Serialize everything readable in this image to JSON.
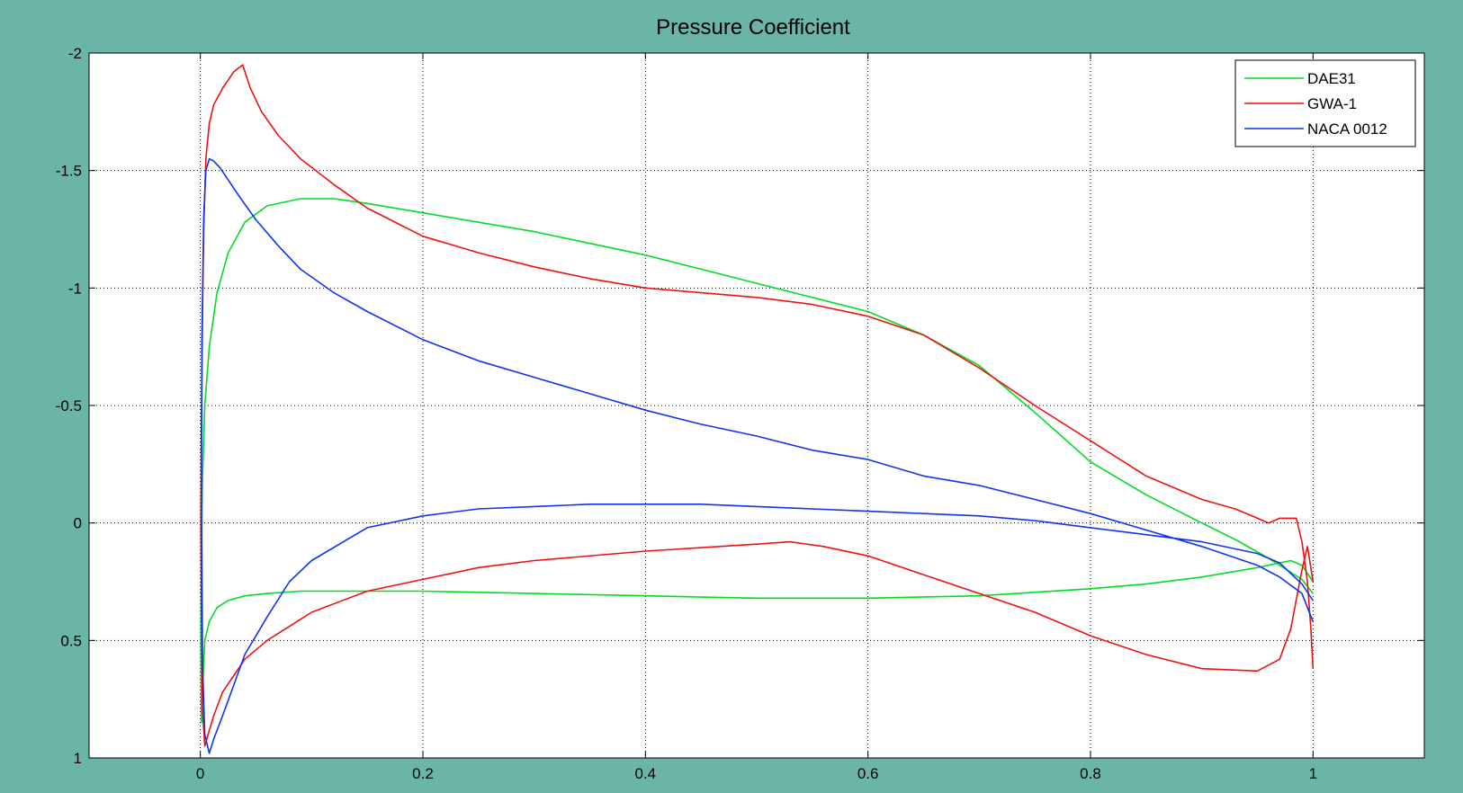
{
  "figure": {
    "background": "#6bb5a8"
  },
  "chart_data": {
    "type": "line",
    "title": "Pressure Coefficient",
    "xlabel": "",
    "ylabel": "",
    "xlim": [
      -0.1,
      1.1
    ],
    "ylim": [
      -2,
      1
    ],
    "y_reversed": true,
    "grid": true,
    "legend_position": "top-right",
    "x_ticks": [
      {
        "value": 0,
        "label": "0"
      },
      {
        "value": 0.2,
        "label": "0.2"
      },
      {
        "value": 0.4,
        "label": "0.4"
      },
      {
        "value": 0.6,
        "label": "0.6"
      },
      {
        "value": 0.8,
        "label": "0.8"
      },
      {
        "value": 1,
        "label": "1"
      }
    ],
    "y_ticks": [
      {
        "value": -2,
        "label": "-2"
      },
      {
        "value": -1.5,
        "label": "-1.5"
      },
      {
        "value": -1,
        "label": "-1"
      },
      {
        "value": -0.5,
        "label": "-0.5"
      },
      {
        "value": 0,
        "label": "0"
      },
      {
        "value": 0.5,
        "label": "0.5"
      },
      {
        "value": 1,
        "label": "1"
      }
    ],
    "series": [
      {
        "name": "DAE31",
        "color": "#00dd22",
        "x": [
          1.0,
          0.99,
          0.96,
          0.93,
          0.9,
          0.85,
          0.8,
          0.75,
          0.7,
          0.65,
          0.6,
          0.55,
          0.5,
          0.45,
          0.4,
          0.35,
          0.3,
          0.25,
          0.2,
          0.15,
          0.12,
          0.09,
          0.06,
          0.04,
          0.025,
          0.015,
          0.008,
          0.004,
          0.002,
          0.001,
          0.0005,
          0.001,
          0.002,
          0.004,
          0.008,
          0.015,
          0.025,
          0.04,
          0.06,
          0.09,
          0.12,
          0.2,
          0.3,
          0.4,
          0.5,
          0.6,
          0.7,
          0.8,
          0.85,
          0.9,
          0.95,
          0.98,
          0.99,
          1.0
        ],
        "y": [
          0.3,
          0.24,
          0.15,
          0.07,
          0.0,
          -0.12,
          -0.26,
          -0.47,
          -0.67,
          -0.8,
          -0.9,
          -0.96,
          -1.02,
          -1.08,
          -1.14,
          -1.19,
          -1.24,
          -1.28,
          -1.32,
          -1.36,
          -1.38,
          -1.38,
          -1.35,
          -1.28,
          -1.15,
          -0.98,
          -0.75,
          -0.5,
          -0.2,
          0.1,
          0.5,
          0.85,
          0.7,
          0.5,
          0.42,
          0.36,
          0.33,
          0.31,
          0.3,
          0.29,
          0.29,
          0.29,
          0.3,
          0.31,
          0.32,
          0.32,
          0.31,
          0.28,
          0.26,
          0.23,
          0.19,
          0.16,
          0.18,
          0.25
        ]
      },
      {
        "name": "GWA-1",
        "color": "#ee1111",
        "x": [
          1.0,
          0.998,
          0.995,
          0.99,
          0.985,
          0.97,
          0.96,
          0.95,
          0.93,
          0.9,
          0.85,
          0.8,
          0.75,
          0.7,
          0.65,
          0.6,
          0.55,
          0.5,
          0.45,
          0.4,
          0.35,
          0.3,
          0.25,
          0.2,
          0.15,
          0.12,
          0.09,
          0.07,
          0.055,
          0.045,
          0.038,
          0.03,
          0.02,
          0.012,
          0.008,
          0.005,
          0.003,
          0.002,
          0.001,
          0.0005,
          0.001,
          0.002,
          0.004,
          0.007,
          0.012,
          0.02,
          0.03,
          0.04,
          0.06,
          0.08,
          0.1,
          0.15,
          0.2,
          0.25,
          0.3,
          0.4,
          0.5,
          0.53,
          0.56,
          0.6,
          0.65,
          0.7,
          0.75,
          0.8,
          0.85,
          0.9,
          0.95,
          0.97,
          0.98,
          0.99,
          0.995,
          1.0
        ],
        "y": [
          0.62,
          0.45,
          0.25,
          0.08,
          -0.02,
          -0.02,
          0.0,
          -0.02,
          -0.06,
          -0.1,
          -0.2,
          -0.35,
          -0.5,
          -0.66,
          -0.8,
          -0.88,
          -0.93,
          -0.96,
          -0.98,
          -1.0,
          -1.04,
          -1.09,
          -1.15,
          -1.22,
          -1.34,
          -1.44,
          -1.55,
          -1.65,
          -1.75,
          -1.85,
          -1.95,
          -1.92,
          -1.85,
          -1.78,
          -1.7,
          -1.55,
          -1.25,
          -0.9,
          -0.45,
          0.0,
          0.45,
          0.8,
          0.95,
          0.9,
          0.82,
          0.72,
          0.65,
          0.58,
          0.5,
          0.44,
          0.38,
          0.29,
          0.24,
          0.19,
          0.16,
          0.12,
          0.09,
          0.08,
          0.1,
          0.14,
          0.22,
          0.3,
          0.38,
          0.48,
          0.56,
          0.62,
          0.63,
          0.58,
          0.45,
          0.2,
          0.1,
          0.25
        ]
      },
      {
        "name": "NACA 0012",
        "color": "#1133ee",
        "x": [
          1.0,
          0.99,
          0.97,
          0.95,
          0.9,
          0.85,
          0.8,
          0.75,
          0.7,
          0.65,
          0.6,
          0.55,
          0.5,
          0.45,
          0.4,
          0.35,
          0.3,
          0.25,
          0.2,
          0.15,
          0.12,
          0.09,
          0.07,
          0.05,
          0.035,
          0.025,
          0.018,
          0.012,
          0.008,
          0.005,
          0.003,
          0.0015,
          0.001,
          0.002,
          0.004,
          0.008,
          0.012,
          0.02,
          0.03,
          0.04,
          0.06,
          0.08,
          0.1,
          0.15,
          0.2,
          0.25,
          0.3,
          0.35,
          0.4,
          0.45,
          0.5,
          0.55,
          0.6,
          0.65,
          0.7,
          0.75,
          0.8,
          0.85,
          0.9,
          0.95,
          0.97,
          0.99,
          1.0
        ],
        "y": [
          0.42,
          0.3,
          0.23,
          0.18,
          0.1,
          0.03,
          -0.04,
          -0.1,
          -0.16,
          -0.2,
          -0.27,
          -0.31,
          -0.37,
          -0.42,
          -0.48,
          -0.55,
          -0.62,
          -0.69,
          -0.78,
          -0.9,
          -0.98,
          -1.08,
          -1.18,
          -1.29,
          -1.39,
          -1.46,
          -1.51,
          -1.54,
          -1.55,
          -1.5,
          -1.3,
          -0.8,
          -0.1,
          0.6,
          0.9,
          0.98,
          0.92,
          0.82,
          0.69,
          0.56,
          0.4,
          0.25,
          0.16,
          0.02,
          -0.03,
          -0.06,
          -0.07,
          -0.08,
          -0.08,
          -0.08,
          -0.07,
          -0.06,
          -0.05,
          -0.04,
          -0.03,
          -0.01,
          0.02,
          0.05,
          0.08,
          0.13,
          0.17,
          0.26,
          0.33
        ]
      }
    ]
  }
}
